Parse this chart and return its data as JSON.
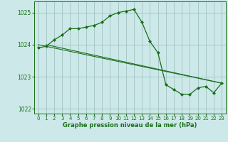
{
  "title": "Graphe pression niveau de la mer (hPa)",
  "background_color": "#cce8e8",
  "grid_color": "#a8c8c8",
  "line_color": "#1a6e1a",
  "marker_color": "#1a6e1a",
  "xlim": [
    -0.5,
    23.5
  ],
  "ylim": [
    1021.85,
    1025.35
  ],
  "yticks": [
    1022,
    1023,
    1024,
    1025
  ],
  "xticks": [
    0,
    1,
    2,
    3,
    4,
    5,
    6,
    7,
    8,
    9,
    10,
    11,
    12,
    13,
    14,
    15,
    16,
    17,
    18,
    19,
    20,
    21,
    22,
    23
  ],
  "series1": {
    "x": [
      0,
      1,
      2,
      3,
      4,
      5,
      6,
      7,
      8,
      9,
      10,
      11,
      12,
      13,
      14,
      15,
      16,
      17,
      18,
      19,
      20,
      21,
      22,
      23
    ],
    "y": [
      1023.9,
      1023.95,
      1024.15,
      1024.3,
      1024.5,
      1024.5,
      1024.55,
      1024.6,
      1024.7,
      1024.9,
      1025.0,
      1025.05,
      1025.1,
      1024.7,
      1024.1,
      1023.75,
      1022.75,
      1022.6,
      1022.45,
      1022.45,
      1022.65,
      1022.7,
      1022.5,
      1022.8
    ]
  },
  "series2": {
    "x": [
      0,
      23
    ],
    "y": [
      1024.0,
      1022.8
    ]
  },
  "series3": {
    "x": [
      1,
      23
    ],
    "y": [
      1024.0,
      1022.8
    ]
  }
}
